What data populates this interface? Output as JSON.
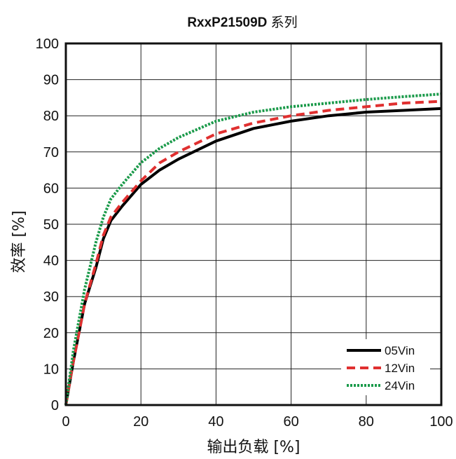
{
  "chart_data": {
    "type": "line",
    "title": "RxxP21509D 系列",
    "title_main": "RxxP21509D",
    "title_suffix": " 系列",
    "xlabel": "输出负载 [%]",
    "ylabel": "效率 [%]",
    "xlim": [
      0,
      100
    ],
    "ylim": [
      0,
      100
    ],
    "x_ticks": [
      "0",
      "20",
      "40",
      "60",
      "80",
      "100"
    ],
    "y_ticks": [
      "0",
      "10",
      "20",
      "30",
      "40",
      "50",
      "60",
      "70",
      "80",
      "90",
      "100"
    ],
    "grid": true,
    "legend_position": "bottom-right",
    "series": [
      {
        "name": "05Vin",
        "color": "#000000",
        "style": "solid",
        "x": [
          0,
          2,
          5,
          8,
          10,
          12,
          15,
          20,
          25,
          30,
          40,
          50,
          60,
          70,
          80,
          90,
          100
        ],
        "y": [
          0,
          12,
          28,
          38,
          46,
          51,
          55,
          61,
          65,
          68,
          73,
          76.5,
          78.5,
          80,
          81,
          81.5,
          82
        ]
      },
      {
        "name": "12Vin",
        "color": "#e03030",
        "style": "dashed",
        "x": [
          0,
          2,
          5,
          8,
          10,
          12,
          15,
          20,
          25,
          30,
          40,
          50,
          60,
          70,
          80,
          90,
          100
        ],
        "y": [
          0,
          12,
          28,
          39,
          47,
          52,
          56,
          62,
          67,
          70,
          75,
          78,
          80,
          81.5,
          82.5,
          83.5,
          84
        ]
      },
      {
        "name": "24Vin",
        "color": "#1a9a4a",
        "style": "dotted",
        "x": [
          0,
          2,
          5,
          8,
          10,
          12,
          15,
          20,
          25,
          30,
          40,
          50,
          60,
          70,
          80,
          90,
          100
        ],
        "y": [
          0,
          15,
          32,
          45,
          52,
          57,
          61,
          67,
          71,
          74,
          78.5,
          81,
          82.5,
          83.5,
          84.5,
          85.3,
          86
        ]
      }
    ]
  }
}
